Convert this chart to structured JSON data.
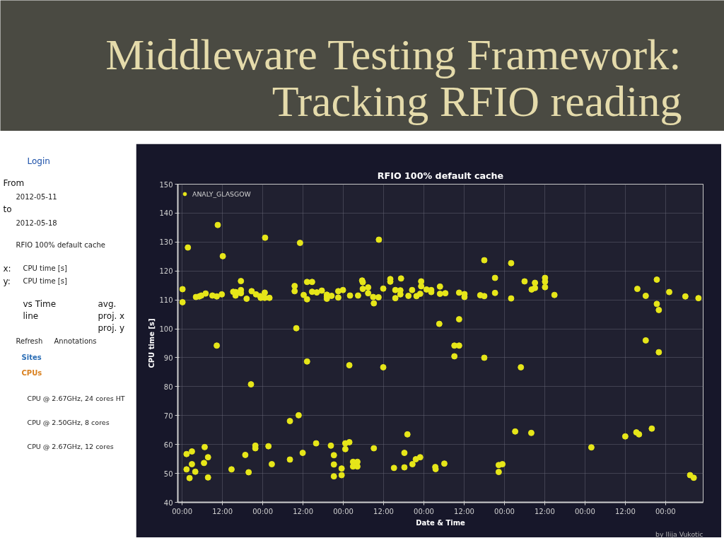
{
  "chart_data": [
    {
      "type": "other",
      "title": "Middleware Testing Framework: Tracking RFIO reading",
      "annotations": [
        "Login",
        "From",
        "2012-05-11",
        "to",
        "2012-05-18",
        "RFIO 100% default cache",
        "x:",
        "CPU time [s]",
        "y:",
        "CPU time [s]",
        "vs Time",
        "avg.",
        "line",
        "proj. x",
        "proj. y",
        "Refresh",
        "Annotations",
        "Sites",
        "CPUs",
        "CPU @ 2.67GHz, 24 cores HT",
        "CPU @ 2.50GHz, 8 cores",
        "CPU @ 2.67GHz, 12 cores"
      ]
    },
    {
      "type": "scatter",
      "title": "RFIO 100% default cache",
      "xlabel": "Date & Time",
      "ylabel": "CPU time [s]",
      "xlim": [
        "2012-05-11T22:42",
        "2012-05-18T11:12"
      ],
      "ylim": [
        40,
        150
      ],
      "xticks": [
        {
          "value": "2012-05-12T00:00",
          "label": "00:00"
        },
        {
          "value": "2012-05-12T12:00",
          "label": "12:00"
        },
        {
          "value": "2012-05-13T00:00",
          "label": "00:00"
        },
        {
          "value": "2012-05-13T12:00",
          "label": "12:00"
        },
        {
          "value": "2012-05-14T00:00",
          "label": "00:00"
        },
        {
          "value": "2012-05-14T12:00",
          "label": "12:00"
        },
        {
          "value": "2012-05-15T00:00",
          "label": "00:00"
        },
        {
          "value": "2012-05-15T12:00",
          "label": "12:00"
        },
        {
          "value": "2012-05-16T00:00",
          "label": "00:00"
        },
        {
          "value": "2012-05-16T12:00",
          "label": "12:00"
        },
        {
          "value": "2012-05-17T00:00",
          "label": "00:00"
        },
        {
          "value": "2012-05-17T12:00",
          "label": "12:00"
        },
        {
          "value": "2012-05-18T00:00",
          "label": "00:00"
        }
      ],
      "yticks": [
        40,
        50,
        60,
        70,
        80,
        90,
        100,
        110,
        120,
        130,
        140,
        150
      ],
      "grid": true,
      "legend": "top left",
      "marker": "circle",
      "series": [
        {
          "name": "ANALY_GLASGOW",
          "color": "#e6e619",
          "x": [
            "2012-05-12T00:06",
            "2012-05-12T00:06",
            "2012-05-12T01:42",
            "2012-05-12T04:06",
            "2012-05-12T05:06",
            "2012-05-12T05:42",
            "2012-05-12T07:00",
            "2012-05-12T09:00",
            "2012-05-12T10:18",
            "2012-05-12T10:36",
            "2012-05-12T11:48",
            "2012-05-12T12:06",
            "2012-05-12T15:12",
            "2012-05-12T15:54",
            "2012-05-12T15:54",
            "2012-05-12T17:30",
            "2012-05-12T17:30",
            "2012-05-12T17:30",
            "2012-05-12T19:12",
            "2012-05-12T20:42",
            "2012-05-12T22:00",
            "2012-05-12T23:12",
            "2012-05-12T23:24",
            "2012-05-13T00:36",
            "2012-05-13T00:36",
            "2012-05-13T00:42",
            "2012-05-13T02:00",
            "2012-05-13T09:30",
            "2012-05-13T09:30",
            "2012-05-13T10:00",
            "2012-05-13T11:06",
            "2012-05-13T12:12",
            "2012-05-13T13:12",
            "2012-05-13T13:12",
            "2012-05-13T14:42",
            "2012-05-13T14:42",
            "2012-05-13T16:06",
            "2012-05-13T17:36",
            "2012-05-13T19:06",
            "2012-05-13T19:06",
            "2012-05-13T19:06",
            "2012-05-13T20:30",
            "2012-05-13T22:30",
            "2012-05-13T22:30",
            "2012-05-13T23:54",
            "2012-05-14T02:00",
            "2012-05-14T04:24",
            "2012-05-14T05:36",
            "2012-05-14T05:48",
            "2012-05-14T05:48",
            "2012-05-14T07:24",
            "2012-05-14T07:24",
            "2012-05-14T08:54",
            "2012-05-14T09:06",
            "2012-05-14T10:30",
            "2012-05-14T10:36",
            "2012-05-14T11:54",
            "2012-05-14T14:00",
            "2012-05-14T14:00",
            "2012-05-14T15:30",
            "2012-05-14T15:30",
            "2012-05-14T17:00",
            "2012-05-14T17:00",
            "2012-05-14T17:12",
            "2012-05-14T19:24",
            "2012-05-14T20:30",
            "2012-05-14T21:48",
            "2012-05-14T22:54",
            "2012-05-14T23:12",
            "2012-05-14T23:12",
            "2012-05-15T00:48",
            "2012-05-15T02:12",
            "2012-05-15T02:12",
            "2012-05-15T04:48",
            "2012-05-15T04:48",
            "2012-05-15T06:24",
            "2012-05-15T04:36",
            "2012-05-15T10:30",
            "2012-05-15T10:30",
            "2012-05-15T12:06",
            "2012-05-15T12:06",
            "2012-05-15T16:48",
            "2012-05-15T18:00",
            "2012-05-15T18:00",
            "2012-05-15T21:12",
            "2012-05-15T21:12",
            "2012-05-16T02:00",
            "2012-05-16T02:00",
            "2012-05-16T06:00",
            "2012-05-16T08:06",
            "2012-05-16T09:06",
            "2012-05-16T09:06",
            "2012-05-16T12:06",
            "2012-05-16T12:06",
            "2012-05-16T12:06",
            "2012-05-16T14:54",
            "2012-05-17T15:36",
            "2012-05-17T18:06",
            "2012-05-17T18:06",
            "2012-05-17T21:24",
            "2012-05-17T21:24",
            "2012-05-17T22:00",
            "2012-05-18T01:06",
            "2012-05-18T05:54",
            "2012-05-18T09:48",
            "2012-05-17T22:00",
            "2012-05-16T08:00",
            "2012-05-17T01:54",
            "2012-05-17T12:00",
            "2012-05-17T15:18",
            "2012-05-17T16:06",
            "2012-05-17T19:54",
            "2012-05-18T07:18",
            "2012-05-18T08:24",
            "2012-05-12T10:18",
            "2012-05-12T20:30",
            "2012-05-13T13:12",
            "2012-05-14T01:48",
            "2012-05-13T08:06",
            "2012-05-13T10:42",
            "2012-05-12T01:18",
            "2012-05-12T01:18",
            "2012-05-12T02:12",
            "2012-05-12T02:54",
            "2012-05-12T02:54",
            "2012-05-12T03:54",
            "2012-05-12T06:30",
            "2012-05-12T06:42",
            "2012-05-12T07:42",
            "2012-05-12T07:42",
            "2012-05-12T14:42",
            "2012-05-12T18:48",
            "2012-05-12T19:48",
            "2012-05-12T21:48",
            "2012-05-12T21:48",
            "2012-05-13T01:42",
            "2012-05-13T02:42",
            "2012-05-13T08:06",
            "2012-05-13T11:54",
            "2012-05-13T15:54",
            "2012-05-13T20:18",
            "2012-05-13T21:12",
            "2012-05-13T21:12",
            "2012-05-13T21:12",
            "2012-05-13T23:30",
            "2012-05-13T23:30",
            "2012-05-14T00:36",
            "2012-05-14T00:36",
            "2012-05-14T01:48",
            "2012-05-14T02:54",
            "2012-05-14T02:54",
            "2012-05-14T04:12",
            "2012-05-14T04:12",
            "2012-05-14T09:06",
            "2012-05-14T11:54",
            "2012-05-14T15:06",
            "2012-05-14T18:12",
            "2012-05-14T18:12",
            "2012-05-14T19:06",
            "2012-05-14T20:36",
            "2012-05-14T21:36",
            "2012-05-14T22:54",
            "2012-05-15T03:24",
            "2012-05-15T03:30",
            "2012-05-15T06:06",
            "2012-05-15T09:06",
            "2012-05-15T10:30",
            "2012-05-15T09:06",
            "2012-05-15T18:00",
            "2012-05-16T04:54",
            "2012-05-15T22:18",
            "2012-05-15T23:24",
            "2012-05-15T22:18",
            "2012-05-16T03:12"
          ],
          "values": [
            113.7,
            109.2,
            128.1,
            111.0,
            111.2,
            111.5,
            112.2,
            111.5,
            111.2,
            135.9,
            111.9,
            125.1,
            112.8,
            112.7,
            111.5,
            116.5,
            113.4,
            112.3,
            110.4,
            113.0,
            111.9,
            111.3,
            110.7,
            112.5,
            110.7,
            131.5,
            110.7,
            114.8,
            113.0,
            100.2,
            129.7,
            111.7,
            116.2,
            110.2,
            116.2,
            112.8,
            112.6,
            113.2,
            111.8,
            111.2,
            110.4,
            111.4,
            113.0,
            110.8,
            113.4,
            111.5,
            111.5,
            116.7,
            116.1,
            113.8,
            114.3,
            112.3,
            111.0,
            108.8,
            110.9,
            130.8,
            113.9,
            117.2,
            116.3,
            113.4,
            110.6,
            113.3,
            111.9,
            117.4,
            111.4,
            113.4,
            111.3,
            112.1,
            116.4,
            114.7,
            113.6,
            113.4,
            112.7,
            114.6,
            112.1,
            112.3,
            101.7,
            112.5,
            103.3,
            112.0,
            111.0,
            111.6,
            111.3,
            123.7,
            117.6,
            112.4,
            122.7,
            110.5,
            116.4,
            113.6,
            115.9,
            114.1,
            117.6,
            116.3,
            114.4,
            111.7,
            113.8,
            111.4,
            96.0,
            117.0,
            108.6,
            106.5,
            112.7,
            111.2,
            110.6,
            91.9,
            64.0,
            59.0,
            62.8,
            64.2,
            63.5,
            65.5,
            49.4,
            48.5,
            94.2,
            80.8,
            88.7,
            87.4,
            68.1,
            70.1,
            56.7,
            51.4,
            48.4,
            57.6,
            53.2,
            50.6,
            53.6,
            59.1,
            55.6,
            48.6,
            51.4,
            56.4,
            50.4,
            59.6,
            58.7,
            59.4,
            53.2,
            54.8,
            57.1,
            60.4,
            59.6,
            56.3,
            53.1,
            49.0,
            51.7,
            49.4,
            60.4,
            58.4,
            60.8,
            54.0,
            52.4,
            54.0,
            52.4,
            58.7,
            86.7,
            51.9,
            57.1,
            52.1,
            63.5,
            53.2,
            54.9,
            55.6,
            52.2,
            51.5,
            53.4,
            94.2,
            94.2,
            90.5,
            90.0,
            86.7,
            52.9,
            53.2,
            50.5,
            64.5
          ]
        }
      ],
      "annotations": [
        "by Ilija Vukotic"
      ]
    }
  ]
}
